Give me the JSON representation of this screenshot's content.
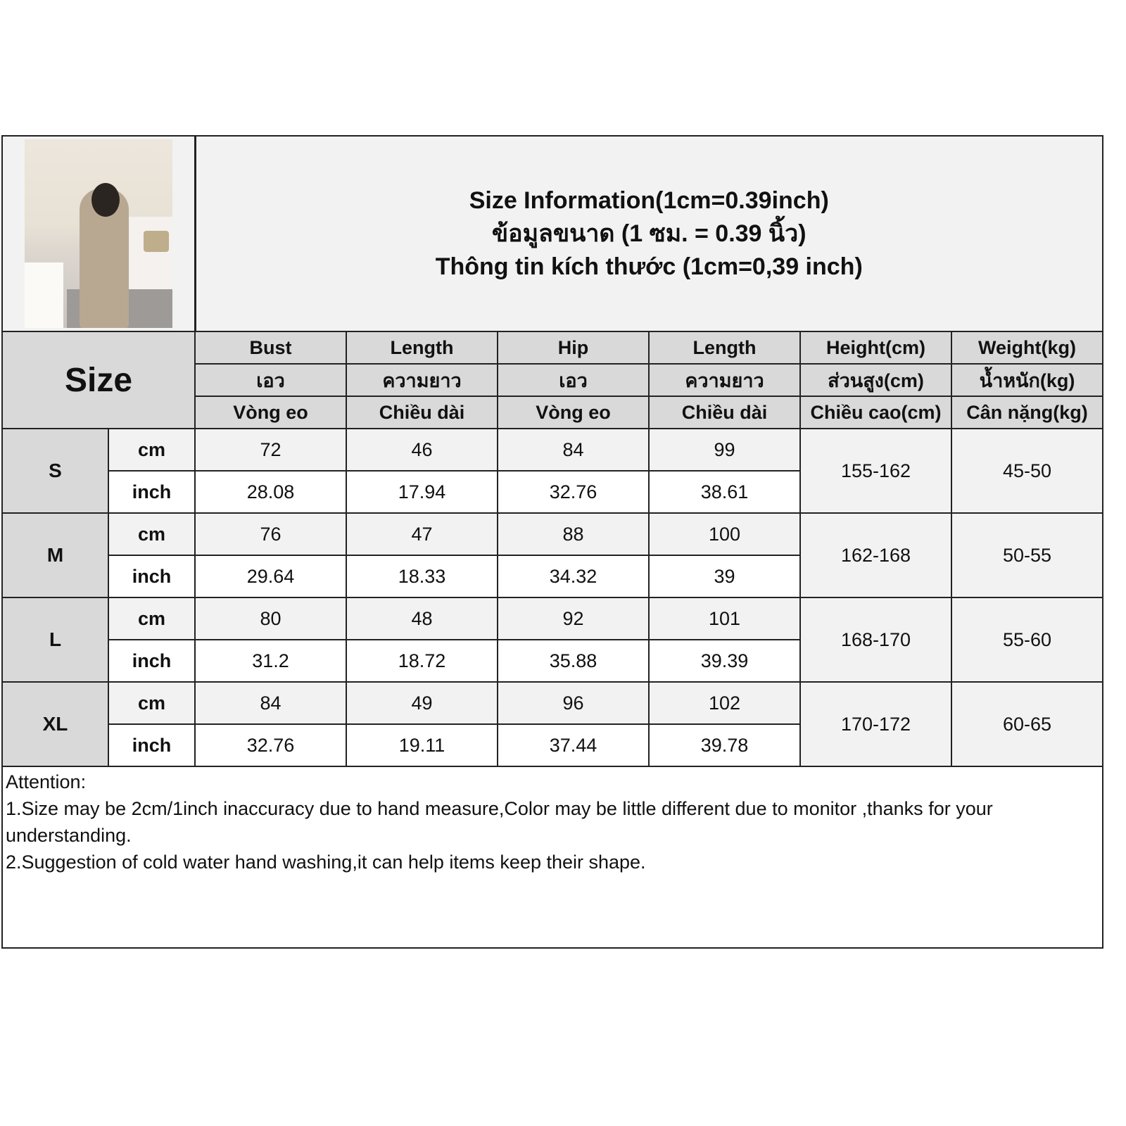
{
  "title": {
    "line1": "Size Information(1cm=0.39inch)",
    "line2": "ข้อมูลขนาด (1 ซม. = 0.39 นิ้ว)",
    "line3": "Thông tin kích thước (1cm=0,39 inch)"
  },
  "size_header": "Size",
  "columns": [
    {
      "en": "Bust",
      "th": "เอว",
      "vi": "Vòng eo"
    },
    {
      "en": "Length",
      "th": "ความยาว",
      "vi": "Chiều dài"
    },
    {
      "en": "Hip",
      "th": "เอว",
      "vi": "Vòng eo"
    },
    {
      "en": "Length",
      "th": "ความยาว",
      "vi": "Chiều dài"
    },
    {
      "en": "Height(cm)",
      "th": "ส่วนสูง(cm)",
      "vi": "Chiều cao(cm)"
    },
    {
      "en": "Weight(kg)",
      "th": "น้ำหนัก(kg)",
      "vi": "Cân nặng(kg)"
    }
  ],
  "units": {
    "cm": "cm",
    "inch": "inch"
  },
  "rows": [
    {
      "size": "S",
      "cm": [
        "72",
        "46",
        "84",
        "99"
      ],
      "inch": [
        "28.08",
        "17.94",
        "32.76",
        "38.61"
      ],
      "height": "155-162",
      "weight": "45-50"
    },
    {
      "size": "M",
      "cm": [
        "76",
        "47",
        "88",
        "100"
      ],
      "inch": [
        "29.64",
        "18.33",
        "34.32",
        "39"
      ],
      "height": "162-168",
      "weight": "50-55"
    },
    {
      "size": "L",
      "cm": [
        "80",
        "48",
        "92",
        "101"
      ],
      "inch": [
        "31.2",
        "18.72",
        "35.88",
        "39.39"
      ],
      "height": "168-170",
      "weight": "55-60"
    },
    {
      "size": "XL",
      "cm": [
        "84",
        "49",
        "96",
        "102"
      ],
      "inch": [
        "32.76",
        "19.11",
        "37.44",
        "39.78"
      ],
      "height": "170-172",
      "weight": "60-65"
    }
  ],
  "notes": {
    "heading": "Attention:",
    "line1": "1.Size may be 2cm/1inch inaccuracy due to hand measure,Color may be little different due to monitor ,thanks for your understanding.",
    "line2": "2.Suggestion of cold water hand washing,it can help items keep their shape."
  }
}
